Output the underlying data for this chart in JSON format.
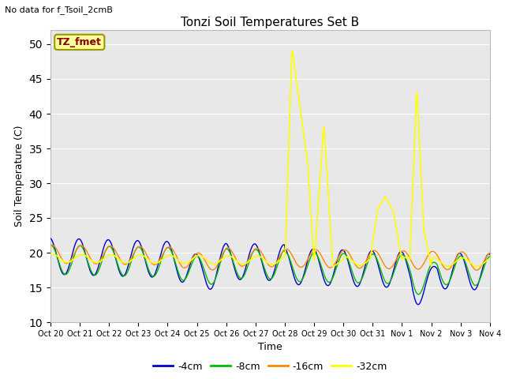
{
  "title": "Tonzi Soil Temperatures Set B",
  "subtitle": "No data for f_Tsoil_2cmB",
  "xlabel": "Time",
  "ylabel": "Soil Temperature (C)",
  "ylim": [
    10,
    52
  ],
  "yticks": [
    10,
    15,
    20,
    25,
    30,
    35,
    40,
    45,
    50
  ],
  "bg_color": "#e8e8e8",
  "legend_label": "TZ_fmet",
  "legend_box_color": "#ffff99",
  "legend_border_color": "#999900",
  "legend_text_color": "#880000",
  "series": {
    "4cm": {
      "color": "#0000cc",
      "label": "-4cm"
    },
    "8cm": {
      "color": "#00bb00",
      "label": "-8cm"
    },
    "16cm": {
      "color": "#ff8800",
      "label": "-16cm"
    },
    "32cm": {
      "color": "#ffff00",
      "label": "-32cm"
    }
  },
  "x_tick_labels": [
    "Oct 20",
    "Oct 21",
    "Oct 22",
    "Oct 23",
    "Oct 24",
    "Oct 25",
    "Oct 26",
    "Oct 27",
    "Oct 28",
    "Oct 29",
    "Oct 30",
    "Oct 31",
    "Nov 1",
    "Nov 2",
    "Nov 3",
    "Nov 4"
  ]
}
